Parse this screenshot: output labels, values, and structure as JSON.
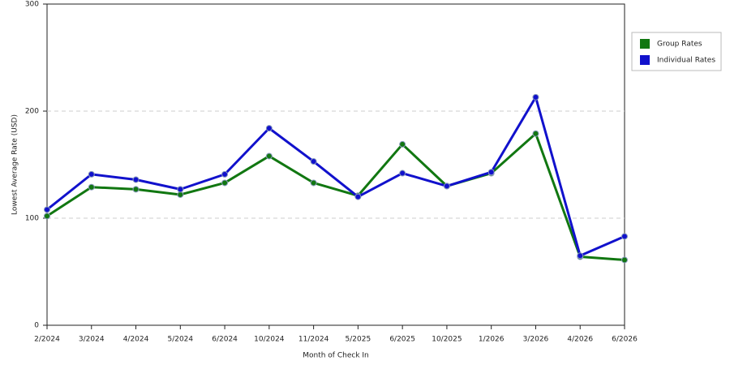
{
  "chart_data": {
    "type": "line",
    "x_label": "Month of Check In",
    "y_label": "Lowest Average Rate (USD)",
    "categories": [
      "2/2024",
      "3/2024",
      "4/2024",
      "5/2024",
      "6/2024",
      "10/2024",
      "11/2024",
      "5/2025",
      "6/2025",
      "10/2025",
      "1/2026",
      "3/2026",
      "4/2026",
      "6/2026"
    ],
    "series": [
      {
        "name": "Group Rates",
        "color": "#117711",
        "values": [
          102,
          129,
          127,
          122,
          133,
          158,
          133,
          121,
          169,
          130,
          142,
          179,
          64,
          61
        ]
      },
      {
        "name": "Individual Rates",
        "color": "#1111cc",
        "values": [
          108,
          141,
          136,
          127,
          141,
          184,
          153,
          120,
          142,
          130,
          143,
          213,
          65,
          83
        ]
      }
    ],
    "ylim": [
      0,
      300
    ],
    "yticks": [
      0,
      100,
      200,
      300
    ],
    "grid": true,
    "legend": "right"
  }
}
